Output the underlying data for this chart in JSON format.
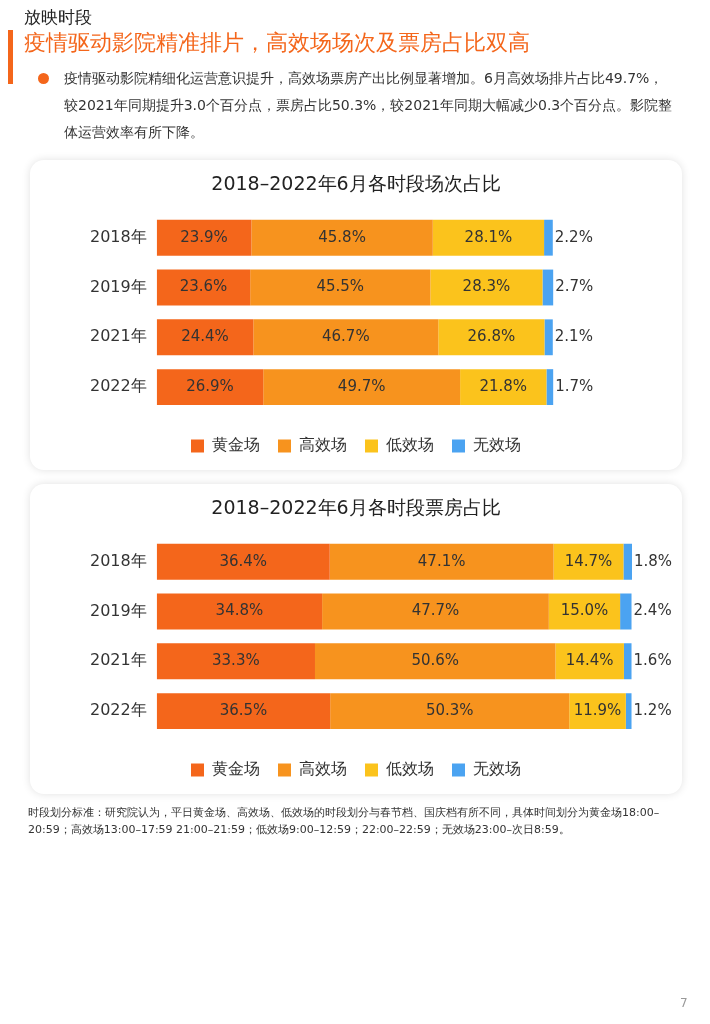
{
  "chart_data": [
    {
      "type": "bar",
      "orientation": "horizontal",
      "stacked": true,
      "title": "2018–2022年6月各时段场次占比",
      "annotations": [
        "放映时段",
        "疫情驱动影院精准排片，高效场场次及票房占比双高",
        "疫情驱动影院精细化运营意识提升，高效场票房产出比例显著增加。6月高效场排片占比49.7%，较2021年同期提升3.0个百分点，票房占比50.3%，较2021年同期大幅减少0.3个百分点。影院整体运营效率有所下降。"
      ],
      "categories": [
        "2018年",
        "2019年",
        "2021年",
        "2022年"
      ],
      "series": [
        {
          "name": "黄金场",
          "color": "#f4661b",
          "values": [
            23.9,
            23.6,
            24.4,
            26.9
          ],
          "value_labels": [
            "23.9%",
            "23.6%",
            "24.4%",
            "26.9%"
          ]
        },
        {
          "name": "高效场",
          "color": "#f7931e",
          "values": [
            45.8,
            45.5,
            46.7,
            49.7
          ],
          "value_labels": [
            "45.8%",
            "45.5%",
            "46.7%",
            "49.7%"
          ]
        },
        {
          "name": "低效场",
          "color": "#fbc31c",
          "values": [
            28.1,
            28.3,
            26.8,
            21.8
          ],
          "value_labels": [
            "28.1%",
            "28.3%",
            "26.8%",
            "21.8%"
          ]
        },
        {
          "name": "无效场",
          "color": "#4ba3f1",
          "values": [
            2.2,
            2.7,
            2.1,
            1.7
          ],
          "value_labels": [
            "2.2%",
            "2.7%",
            "2.1%",
            "1.7%"
          ]
        }
      ],
      "tick_labels": "y",
      "legend": "bottom",
      "grid": false
    },
    {
      "type": "bar",
      "orientation": "horizontal",
      "stacked": true,
      "title": "2018–2022年6月各时段票房占比",
      "annotations": [
        "时段划分标准：研究院认为，平日黄金场、高效场、低效场的时段划分与春节档、国庆档有所不同，具体时间划分为黄金场18:00–20:59；高效场13:00–17:59 21:00–21:59；低效场9:00–12:59；22:00–22:59；无效场23:00–次日8:59。",
        "7"
      ],
      "categories": [
        "2018年",
        "2019年",
        "2021年",
        "2022年"
      ],
      "series": [
        {
          "name": "黄金场",
          "color": "#f4661b",
          "values": [
            36.4,
            34.8,
            33.3,
            36.5
          ],
          "value_labels": [
            "36.4%",
            "34.8%",
            "33.3%",
            "36.5%"
          ]
        },
        {
          "name": "高效场",
          "color": "#f7931e",
          "values": [
            47.1,
            47.7,
            50.6,
            50.3
          ],
          "value_labels": [
            "47.1%",
            "47.7%",
            "50.6%",
            "50.3%"
          ]
        },
        {
          "name": "低效场",
          "color": "#fbc31c",
          "values": [
            14.7,
            15.0,
            14.4,
            11.9
          ],
          "value_labels": [
            "14.7%",
            "15.0%",
            "14.4%",
            "11.9%"
          ]
        },
        {
          "name": "无效场",
          "color": "#4ba3f1",
          "values": [
            1.8,
            2.4,
            1.6,
            1.2
          ],
          "value_labels": [
            "1.8%",
            "2.4%",
            "1.6%",
            "1.2%"
          ]
        }
      ],
      "tick_labels": "y",
      "legend": "bottom",
      "grid": false
    }
  ]
}
